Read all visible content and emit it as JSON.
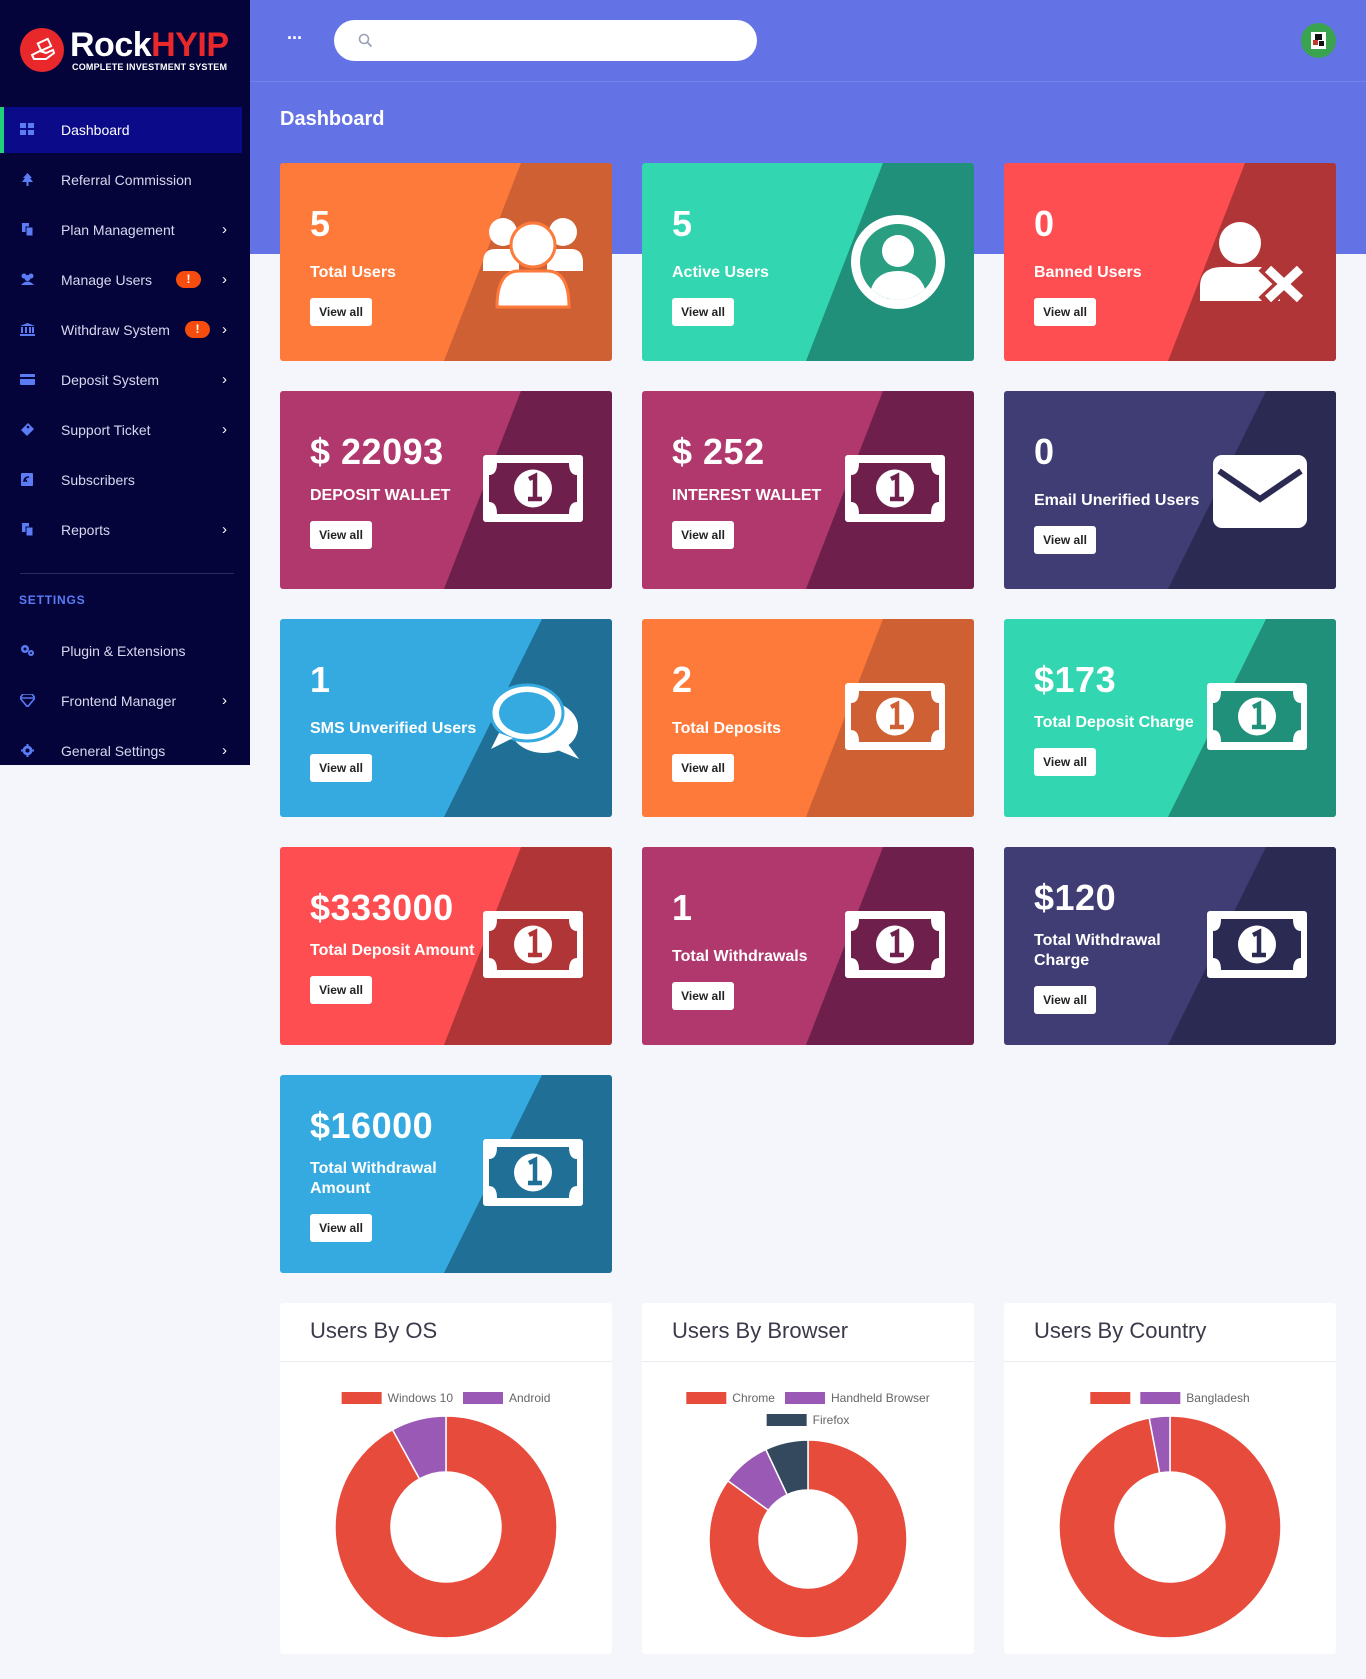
{
  "brand": {
    "name_part1": "Rock",
    "name_part2": "HYIP",
    "tagline": "COMPLETE INVESTMENT SYSTEM"
  },
  "sidebar": {
    "items": [
      {
        "label": "Dashboard",
        "icon": "grid-icon",
        "active": true
      },
      {
        "label": "Referral Commission",
        "icon": "tree-icon"
      },
      {
        "label": "Plan Management",
        "icon": "copy-icon",
        "has_submenu": true
      },
      {
        "label": "Manage Users",
        "icon": "users-icon",
        "has_submenu": true,
        "badge": "!"
      },
      {
        "label": "Withdraw System",
        "icon": "bank-icon",
        "has_submenu": true,
        "badge": "!"
      },
      {
        "label": "Deposit System",
        "icon": "credit-card-icon",
        "has_submenu": true
      },
      {
        "label": "Support Ticket",
        "icon": "ticket-icon",
        "has_submenu": true
      },
      {
        "label": "Subscribers",
        "icon": "newsletter-icon"
      },
      {
        "label": "Reports",
        "icon": "copy-icon",
        "has_submenu": true
      }
    ],
    "settings_title": "SETTINGS",
    "settings_items": [
      {
        "label": "Plugin & Extensions",
        "icon": "cogs-icon"
      },
      {
        "label": "Frontend Manager",
        "icon": "diamond-icon",
        "has_submenu": true
      },
      {
        "label": "General Settings",
        "icon": "gear-icon",
        "has_submenu": true
      }
    ]
  },
  "header": {
    "menu_glyph": "···",
    "search_placeholder": "",
    "search_value": ""
  },
  "page_title": "Dashboard",
  "cards": [
    {
      "value": "5",
      "label": "Total Users",
      "button": "View all",
      "icon": "users-icon"
    },
    {
      "value": "5",
      "label": "Active Users",
      "button": "View all",
      "icon": "user-circle-icon"
    },
    {
      "value": "0",
      "label": "Banned Users",
      "button": "View all",
      "icon": "user-times-icon"
    },
    {
      "value": "$ 22093",
      "label": "DEPOSIT WALLET",
      "button": "View all",
      "icon": "money-bill-icon"
    },
    {
      "value": "$ 252",
      "label": "INTEREST WALLET",
      "button": "View all",
      "icon": "money-bill-icon"
    },
    {
      "value": "0",
      "label": "Email Unerified Users",
      "button": "View all",
      "icon": "envelope-icon"
    },
    {
      "value": "1",
      "label": "SMS Unverified Users",
      "button": "View all",
      "icon": "comments-icon"
    },
    {
      "value": "2",
      "label": "Total Deposits",
      "button": "View all",
      "icon": "money-bill-icon"
    },
    {
      "value": "$173",
      "label": "Total Deposit Charge",
      "button": "View all",
      "icon": "money-bill-icon"
    },
    {
      "value": "$333000",
      "label": "Total Deposit Amount",
      "button": "View all",
      "icon": "money-bill-icon"
    },
    {
      "value": "1",
      "label": "Total Withdrawals",
      "button": "View all",
      "icon": "money-bill-icon"
    },
    {
      "value": "$120",
      "label": "Total Withdrawal Charge",
      "button": "View all",
      "icon": "money-bill-icon"
    },
    {
      "value": "$16000",
      "label": "Total Withdrawal Amount",
      "button": "View all",
      "icon": "money-bill-icon"
    }
  ],
  "colors": {
    "sidebar_bg": "#04043a",
    "header_bg": "#6372e4",
    "orange": "#fe7a3a",
    "teal": "#32d6b0",
    "red": "#fe4e51",
    "plum": "#b0386d",
    "navy": "#403d74",
    "sky": "#35aae0",
    "chart_red": "#e74b3c",
    "chart_purple": "#9b59b6",
    "chart_dark": "#34495e"
  },
  "chart_data": [
    {
      "type": "pie",
      "title": "Users By OS",
      "categories": [
        "Windows 10",
        "Android"
      ],
      "values": [
        92,
        8
      ],
      "colors": [
        "#e74b3c",
        "#9b59b6"
      ]
    },
    {
      "type": "pie",
      "title": "Users By Browser",
      "categories": [
        "Chrome",
        "Handheld Browser",
        "Firefox"
      ],
      "values": [
        85,
        8,
        7
      ],
      "colors": [
        "#e74b3c",
        "#9b59b6",
        "#34495e"
      ]
    },
    {
      "type": "pie",
      "title": "Users By Country",
      "categories": [
        "",
        "Bangladesh"
      ],
      "values": [
        97,
        3
      ],
      "colors": [
        "#e74b3c",
        "#9b59b6"
      ]
    }
  ]
}
